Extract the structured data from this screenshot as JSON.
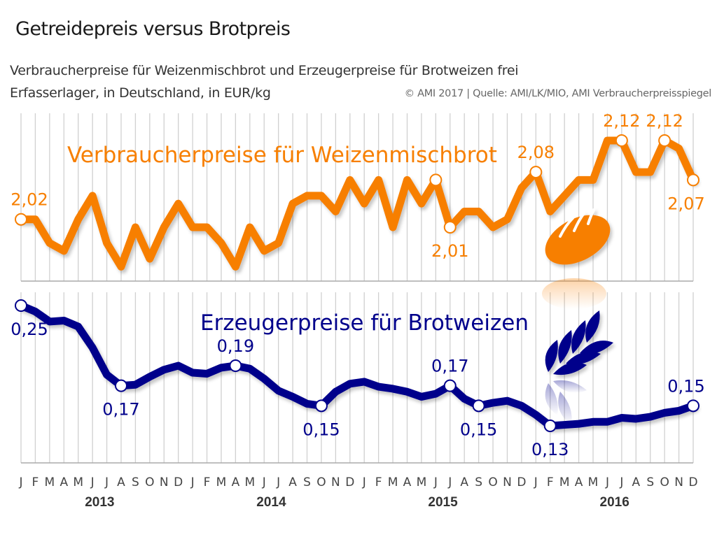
{
  "header": {
    "title": "Getreidepreis versus Brotpreis",
    "subtitle_line1": "Verbraucherpreise für Weizenmischbrot und Erzeugerpreise für Brotweizen frei",
    "subtitle_line2": "Erfasserlager, in Deutschland, in EUR/kg",
    "source": "© AMI 2017 | Quelle: AMI/LK/MIO, AMI Verbraucherpreisspiegel"
  },
  "colors": {
    "bread": "#f77f00",
    "wheat": "#00008b",
    "grid": "#d0d0d0",
    "axis_text": "#444444"
  },
  "icons": {
    "bread": "bread-loaf-icon",
    "wheat": "wheat-ear-icon"
  },
  "chart_data": [
    {
      "type": "line",
      "title": "Verbraucherpreise für Weizenmischbrot",
      "unit": "EUR/kg",
      "color": "#f77f00",
      "ylim": [
        1.95,
        2.13
      ],
      "grid": "vertical",
      "x": [
        "J",
        "F",
        "M",
        "A",
        "M",
        "J",
        "J",
        "A",
        "S",
        "O",
        "N",
        "D",
        "J",
        "F",
        "M",
        "A",
        "M",
        "J",
        "J",
        "A",
        "S",
        "O",
        "N",
        "D",
        "J",
        "F",
        "M",
        "A",
        "M",
        "J",
        "J",
        "A",
        "S",
        "O",
        "N",
        "D",
        "J",
        "F",
        "M",
        "A",
        "M",
        "J",
        "J",
        "A",
        "S",
        "O",
        "N",
        "D"
      ],
      "values": [
        2.02,
        2.02,
        1.99,
        1.98,
        2.02,
        2.05,
        1.99,
        1.96,
        2.01,
        1.97,
        2.01,
        2.04,
        2.01,
        2.01,
        1.99,
        1.96,
        2.01,
        1.98,
        1.99,
        2.04,
        2.05,
        2.05,
        2.03,
        2.07,
        2.04,
        2.07,
        2.01,
        2.07,
        2.04,
        2.07,
        2.01,
        2.03,
        2.03,
        2.01,
        2.02,
        2.06,
        2.08,
        2.03,
        2.05,
        2.07,
        2.07,
        2.12,
        2.12,
        2.08,
        2.08,
        2.12,
        2.11,
        2.07
      ],
      "annotations": [
        {
          "index": 0,
          "label": "2,02",
          "pos": "above"
        },
        {
          "index": 29,
          "label": "",
          "pos": "above"
        },
        {
          "index": 30,
          "label": "2,01",
          "pos": "below"
        },
        {
          "index": 36,
          "label": "2,08",
          "pos": "above"
        },
        {
          "index": 42,
          "label": "2,12",
          "pos": "above"
        },
        {
          "index": 45,
          "label": "2,12",
          "pos": "above"
        },
        {
          "index": 47,
          "label": "2,07",
          "pos": "below"
        }
      ]
    },
    {
      "type": "line",
      "title": "Erzeugerpreise für Brotweizen",
      "unit": "EUR/kg",
      "color": "#00008b",
      "ylim": [
        0.1,
        0.26
      ],
      "grid": "vertical",
      "x": [
        "J",
        "F",
        "M",
        "A",
        "M",
        "J",
        "J",
        "A",
        "S",
        "O",
        "N",
        "D",
        "J",
        "F",
        "M",
        "A",
        "M",
        "J",
        "J",
        "A",
        "S",
        "O",
        "N",
        "D",
        "J",
        "F",
        "M",
        "A",
        "M",
        "J",
        "J",
        "A",
        "S",
        "O",
        "N",
        "D",
        "J",
        "F",
        "M",
        "A",
        "M",
        "J",
        "J",
        "A",
        "S",
        "O",
        "N",
        "D"
      ],
      "values": [
        0.25,
        0.244,
        0.234,
        0.235,
        0.229,
        0.208,
        0.181,
        0.17,
        0.171,
        0.179,
        0.186,
        0.19,
        0.183,
        0.182,
        0.188,
        0.19,
        0.187,
        0.177,
        0.165,
        0.159,
        0.152,
        0.15,
        0.164,
        0.172,
        0.174,
        0.169,
        0.167,
        0.164,
        0.159,
        0.162,
        0.17,
        0.157,
        0.15,
        0.153,
        0.155,
        0.15,
        0.141,
        0.13,
        0.131,
        0.132,
        0.134,
        0.134,
        0.138,
        0.137,
        0.139,
        0.143,
        0.145,
        0.15
      ],
      "annotations": [
        {
          "index": 0,
          "label": "0,25",
          "pos": "below"
        },
        {
          "index": 7,
          "label": "0,17",
          "pos": "below"
        },
        {
          "index": 15,
          "label": "0,19",
          "pos": "above"
        },
        {
          "index": 21,
          "label": "0,15",
          "pos": "below"
        },
        {
          "index": 30,
          "label": "0,17",
          "pos": "above"
        },
        {
          "index": 32,
          "label": "0,15",
          "pos": "below"
        },
        {
          "index": 37,
          "label": "0,13",
          "pos": "below"
        },
        {
          "index": 47,
          "label": "0,15",
          "pos": "above"
        }
      ]
    }
  ],
  "x_axis": {
    "months": [
      "J",
      "F",
      "M",
      "A",
      "M",
      "J",
      "J",
      "A",
      "S",
      "O",
      "N",
      "D",
      "J",
      "F",
      "M",
      "A",
      "M",
      "J",
      "J",
      "A",
      "S",
      "O",
      "N",
      "D",
      "J",
      "F",
      "M",
      "A",
      "M",
      "J",
      "J",
      "A",
      "S",
      "O",
      "N",
      "D",
      "J",
      "F",
      "M",
      "A",
      "M",
      "J",
      "J",
      "A",
      "S",
      "O",
      "N",
      "D"
    ],
    "years": [
      "2013",
      "2014",
      "2015",
      "2016"
    ]
  }
}
